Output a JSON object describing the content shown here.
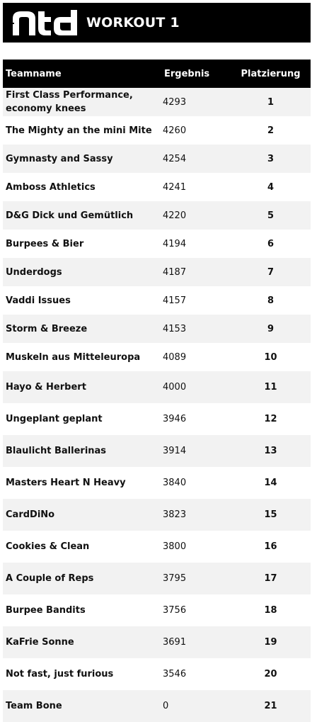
{
  "header": {
    "logo_text": "ntd",
    "title": "WORKOUT 1"
  },
  "table": {
    "columns": {
      "team": "Teamname",
      "score": "Ergebnis",
      "rank": "Platzierung"
    },
    "rows": [
      {
        "team": "First Class Performance, economy knees",
        "score": "4293",
        "rank": "1"
      },
      {
        "team": "The Mighty an the mini Mite",
        "score": "4260",
        "rank": "2"
      },
      {
        "team": "Gymnasty and Sassy",
        "score": "4254",
        "rank": "3"
      },
      {
        "team": "Amboss Athletics",
        "score": "4241",
        "rank": "4"
      },
      {
        "team": "D&G Dick und Gemütlich",
        "score": "4220",
        "rank": "5"
      },
      {
        "team": "Burpees & Bier",
        "score": "4194",
        "rank": "6"
      },
      {
        "team": "Underdogs",
        "score": "4187",
        "rank": "7"
      },
      {
        "team": "Vaddi Issues",
        "score": "4157",
        "rank": "8"
      },
      {
        "team": "Storm & Breeze",
        "score": "4153",
        "rank": "9"
      },
      {
        "team": "Muskeln aus Mitteleuropa",
        "score": "4089",
        "rank": "10"
      },
      {
        "team": "Hayo & Herbert",
        "score": "4000",
        "rank": "11"
      },
      {
        "team": "Ungeplant geplant",
        "score": "3946",
        "rank": "12"
      },
      {
        "team": "Blaulicht Ballerinas",
        "score": "3914",
        "rank": "13"
      },
      {
        "team": "Masters Heart N Heavy",
        "score": "3840",
        "rank": "14"
      },
      {
        "team": "CardDiNo",
        "score": "3823",
        "rank": "15"
      },
      {
        "team": "Cookies & Clean",
        "score": "3800",
        "rank": "16"
      },
      {
        "team": "A Couple of Reps",
        "score": "3795",
        "rank": "17"
      },
      {
        "team": "Burpee Bandits",
        "score": "3756",
        "rank": "18"
      },
      {
        "team": "KaFrie Sonne",
        "score": "3691",
        "rank": "19"
      },
      {
        "team": "Not fast, just furious",
        "score": "3546",
        "rank": "20"
      },
      {
        "team": "Team Bone",
        "score": "0",
        "rank": "21"
      }
    ]
  }
}
